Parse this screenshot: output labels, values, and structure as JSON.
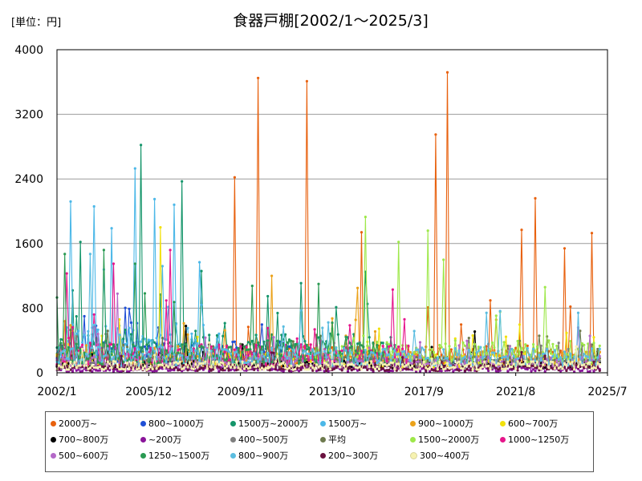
{
  "chart_data": {
    "type": "line",
    "title": "食器戸棚[2002/1～2025/3]",
    "unit_label": "[単位：円]",
    "xlabel": "",
    "ylabel": "",
    "ylim": [
      0,
      4000
    ],
    "yticks": [
      "0",
      "800",
      "1600",
      "2400",
      "3200",
      "4000"
    ],
    "xticks": [
      "2002/1",
      "2005/12",
      "2009/11",
      "2013/10",
      "2017/9",
      "2021/8",
      "2025/7"
    ],
    "x_start": "2002/1",
    "x_end": "2025/7",
    "legend_position": "bottom",
    "series": [
      {
        "name": "2000万~",
        "color": "#e8610e",
        "base": 200,
        "noise": 0.65,
        "start_year": 2008.5,
        "peaks": [
          [
            2009.6,
            2420
          ],
          [
            2010.6,
            3650
          ],
          [
            2012.7,
            3610
          ],
          [
            2015.0,
            1740
          ],
          [
            2018.2,
            2950
          ],
          [
            2018.7,
            3720
          ],
          [
            2021.8,
            1770
          ],
          [
            2022.4,
            2160
          ],
          [
            2023.7,
            1540
          ],
          [
            2024.8,
            1730
          ]
        ]
      },
      {
        "name": "800~1000万",
        "color": "#1f4fd6",
        "base": 260,
        "noise": 0.5,
        "start_year": 2002.0,
        "end_year": 2012.0,
        "peaks": [
          [
            2003.2,
            700
          ],
          [
            2005.2,
            620
          ],
          [
            2006.3,
            560
          ]
        ]
      },
      {
        "name": "1500万~2000万",
        "color": "#14956a",
        "base": 300,
        "noise": 0.6,
        "start_year": 2002.0,
        "end_year": 2016.5,
        "peaks": [
          [
            2003.0,
            1620
          ],
          [
            2005.6,
            2820
          ],
          [
            2007.3,
            2370
          ],
          [
            2008.2,
            1260
          ],
          [
            2012.4,
            1110
          ],
          [
            2015.2,
            1250
          ]
        ]
      },
      {
        "name": "1500万~",
        "color": "#4cb8e8",
        "base": 380,
        "noise": 0.6,
        "start_year": 2002.0,
        "end_year": 2009.0,
        "peaks": [
          [
            2002.6,
            2120
          ],
          [
            2003.6,
            2060
          ],
          [
            2004.3,
            1790
          ],
          [
            2005.3,
            2530
          ],
          [
            2006.2,
            2150
          ],
          [
            2007.0,
            2080
          ]
        ]
      },
      {
        "name": "900~1000万",
        "color": "#eba21a",
        "base": 170,
        "noise": 0.55,
        "start_year": 2002.0,
        "peaks": [
          [
            2011.2,
            1200
          ],
          [
            2014.8,
            1050
          ]
        ]
      },
      {
        "name": "600~700万",
        "color": "#f2e10c",
        "base": 150,
        "noise": 0.6,
        "start_year": 2002.0,
        "peaks": [
          [
            2006.4,
            1800
          ]
        ]
      },
      {
        "name": "700~800万",
        "color": "#000000",
        "base": 100,
        "noise": 0.5,
        "start_year": 2002.0,
        "peaks": [
          [
            2007.5,
            580
          ],
          [
            2019.8,
            510
          ]
        ]
      },
      {
        "name": "~200万",
        "color": "#8a159a",
        "base": 40,
        "noise": 0.7,
        "start_year": 2002.0,
        "peaks": []
      },
      {
        "name": "400~500万",
        "color": "#7f7f7f",
        "base": 110,
        "noise": 0.5,
        "start_year": 2002.0,
        "peaks": []
      },
      {
        "name": "平均",
        "color": "#6e7a4e",
        "base": 170,
        "noise": 0.18,
        "start_year": 2002.0,
        "peaks": []
      },
      {
        "name": "1500~2000万",
        "color": "#9ee84a",
        "base": 250,
        "noise": 0.6,
        "start_year": 2013.0,
        "peaks": [
          [
            2015.2,
            1930
          ],
          [
            2016.6,
            1620
          ],
          [
            2017.8,
            1760
          ],
          [
            2018.5,
            1400
          ],
          [
            2022.8,
            1060
          ]
        ]
      },
      {
        "name": "1000~1250万",
        "color": "#e6168b",
        "base": 220,
        "noise": 0.6,
        "start_year": 2002.0,
        "end_year": 2017.0,
        "peaks": [
          [
            2002.4,
            1230
          ],
          [
            2004.4,
            1350
          ],
          [
            2006.8,
            1520
          ],
          [
            2016.3,
            1030
          ]
        ]
      },
      {
        "name": "500~600万",
        "color": "#b469c8",
        "base": 130,
        "noise": 0.6,
        "start_year": 2002.0,
        "peaks": [
          [
            2004.6,
            980
          ]
        ]
      },
      {
        "name": "1250~1500万",
        "color": "#2a9a52",
        "base": 250,
        "noise": 0.6,
        "start_year": 2002.0,
        "end_year": 2016.0,
        "peaks": [
          [
            2002.3,
            1470
          ],
          [
            2004.0,
            1520
          ],
          [
            2005.3,
            1350
          ],
          [
            2013.2,
            1100
          ]
        ]
      },
      {
        "name": "800~900万",
        "color": "#5bbde0",
        "base": 200,
        "noise": 0.6,
        "start_year": 2002.0,
        "peaks": [
          [
            2003.4,
            1470
          ]
        ]
      },
      {
        "name": "200~300万",
        "color": "#6a1240",
        "base": 60,
        "noise": 0.6,
        "start_year": 2002.0,
        "peaks": []
      },
      {
        "name": "300~400万",
        "color": "#f6f2b0",
        "base": 90,
        "noise": 0.6,
        "start_year": 2002.0,
        "peaks": []
      }
    ]
  }
}
